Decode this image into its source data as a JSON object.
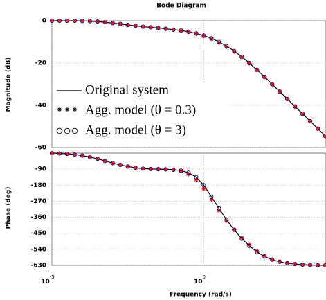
{
  "chart_data": [
    {
      "type": "line",
      "title": "Bode Diagram",
      "ylabel": "Magnitude (dB)",
      "xscale": "log",
      "grid": true,
      "legend": "lower left",
      "x": [
        1e-05,
        1.78e-05,
        3.16e-05,
        5.62e-05,
        0.0001,
        0.000178,
        0.000316,
        0.000562,
        0.001,
        0.00178,
        0.00316,
        0.00562,
        0.01,
        0.0178,
        0.0316,
        0.0562,
        0.1,
        0.178,
        0.316,
        0.562,
        1,
        1.78,
        3.16,
        5.62,
        10,
        17.8,
        31.6,
        56.2,
        100,
        178,
        316,
        562,
        1000,
        1780,
        3160,
        5620,
        10000
      ],
      "xlim": [
        1e-05,
        10000
      ],
      "xticks": [
        1e-05,
        1
      ],
      "ylim": [
        -60,
        0
      ],
      "yticks": [
        0,
        -20,
        -40,
        -60
      ],
      "series": [
        {
          "name": "Original system",
          "color": "#000000",
          "marker": "none",
          "values": [
            0,
            0,
            0,
            0,
            -0.1,
            -0.2,
            -0.4,
            -0.7,
            -1.1,
            -1.5,
            -2,
            -2.4,
            -2.8,
            -3.1,
            -3.4,
            -3.8,
            -4.2,
            -4.6,
            -5.2,
            -6,
            -7,
            -8.3,
            -10,
            -12,
            -14.3,
            -17,
            -20,
            -23.2,
            -26.5,
            -30,
            -33.5,
            -37,
            -40.5,
            -44,
            -47.5,
            -51,
            -54.5
          ]
        },
        {
          "name": "Agg. model (θ = 0.3)",
          "color": "#ff0000",
          "marker": "asterisk",
          "values": [
            0,
            0,
            0,
            0,
            -0.1,
            -0.2,
            -0.4,
            -0.7,
            -1.1,
            -1.5,
            -2,
            -2.4,
            -2.8,
            -3.1,
            -3.4,
            -3.8,
            -4.2,
            -4.7,
            -5.3,
            -6.2,
            -7.3,
            -8.7,
            -10.4,
            -12.4,
            -14.7,
            -17.3,
            -20.2,
            -23.4,
            -26.7,
            -30.1,
            -33.6,
            -37.1,
            -40.6,
            -44.1,
            -47.6,
            -51.1,
            -54.6
          ]
        },
        {
          "name": "Agg. model (θ = 3)",
          "color": "#000080",
          "marker": "circle",
          "values": [
            0,
            0,
            0,
            0,
            -0.1,
            -0.2,
            -0.4,
            -0.7,
            -1.1,
            -1.5,
            -2,
            -2.4,
            -2.8,
            -3.1,
            -3.4,
            -3.8,
            -4.2,
            -4.6,
            -5.2,
            -6,
            -7,
            -8.3,
            -10,
            -12,
            -14.3,
            -17,
            -20,
            -23.2,
            -26.5,
            -30,
            -33.5,
            -37,
            -40.5,
            -44,
            -47.5,
            -51,
            -54.5
          ]
        }
      ]
    },
    {
      "type": "line",
      "ylabel": "Phase (deg)",
      "xlabel": "Frequency (rad/s)",
      "xscale": "log",
      "grid": true,
      "x": [
        1e-05,
        1.78e-05,
        3.16e-05,
        5.62e-05,
        0.0001,
        0.000178,
        0.000316,
        0.000562,
        0.001,
        0.00178,
        0.00316,
        0.00562,
        0.01,
        0.0178,
        0.0316,
        0.0562,
        0.1,
        0.178,
        0.316,
        0.562,
        1,
        1.78,
        3.16,
        5.62,
        10,
        17.8,
        31.6,
        56.2,
        100,
        178,
        316,
        562,
        1000,
        1780,
        3160,
        5620,
        10000
      ],
      "xlim": [
        1e-05,
        10000
      ],
      "xticks": [
        {
          "value": 1e-05,
          "label": "10",
          "exponent": "-5"
        },
        {
          "value": 1,
          "label": "10",
          "exponent": "0"
        }
      ],
      "ylim": [
        -630,
        0
      ],
      "yticks": [
        -90,
        -180,
        -270,
        -360,
        -450,
        -540,
        -630
      ],
      "series": [
        {
          "name": "Original system",
          "color": "#000000",
          "marker": "none",
          "values": [
            0,
            -2,
            -4,
            -8,
            -14,
            -22,
            -32,
            -44,
            -56,
            -66,
            -75,
            -82,
            -87,
            -89,
            -90,
            -91,
            -93,
            -98,
            -110,
            -135,
            -180,
            -245,
            -310,
            -375,
            -430,
            -480,
            -520,
            -555,
            -580,
            -598,
            -610,
            -618,
            -623,
            -626,
            -628,
            -629,
            -630
          ]
        },
        {
          "name": "Agg. model (θ = 0.3)",
          "color": "#ff0000",
          "marker": "asterisk",
          "values": [
            0,
            -2,
            -4,
            -8,
            -14,
            -22,
            -32,
            -44,
            -56,
            -66,
            -75,
            -82,
            -87,
            -89,
            -90,
            -91,
            -93,
            -100,
            -118,
            -150,
            -200,
            -262,
            -322,
            -380,
            -430,
            -475,
            -515,
            -550,
            -577,
            -596,
            -609,
            -617,
            -622,
            -626,
            -628,
            -629,
            -630
          ]
        },
        {
          "name": "Agg. model (θ = 3)",
          "color": "#000080",
          "marker": "circle",
          "values": [
            0,
            -2,
            -4,
            -8,
            -14,
            -22,
            -32,
            -44,
            -56,
            -66,
            -75,
            -82,
            -87,
            -89,
            -90,
            -91,
            -93,
            -98,
            -110,
            -135,
            -180,
            -245,
            -310,
            -375,
            -430,
            -480,
            -520,
            -555,
            -580,
            -598,
            -610,
            -618,
            -623,
            -626,
            -628,
            -629,
            -630
          ]
        }
      ]
    }
  ]
}
